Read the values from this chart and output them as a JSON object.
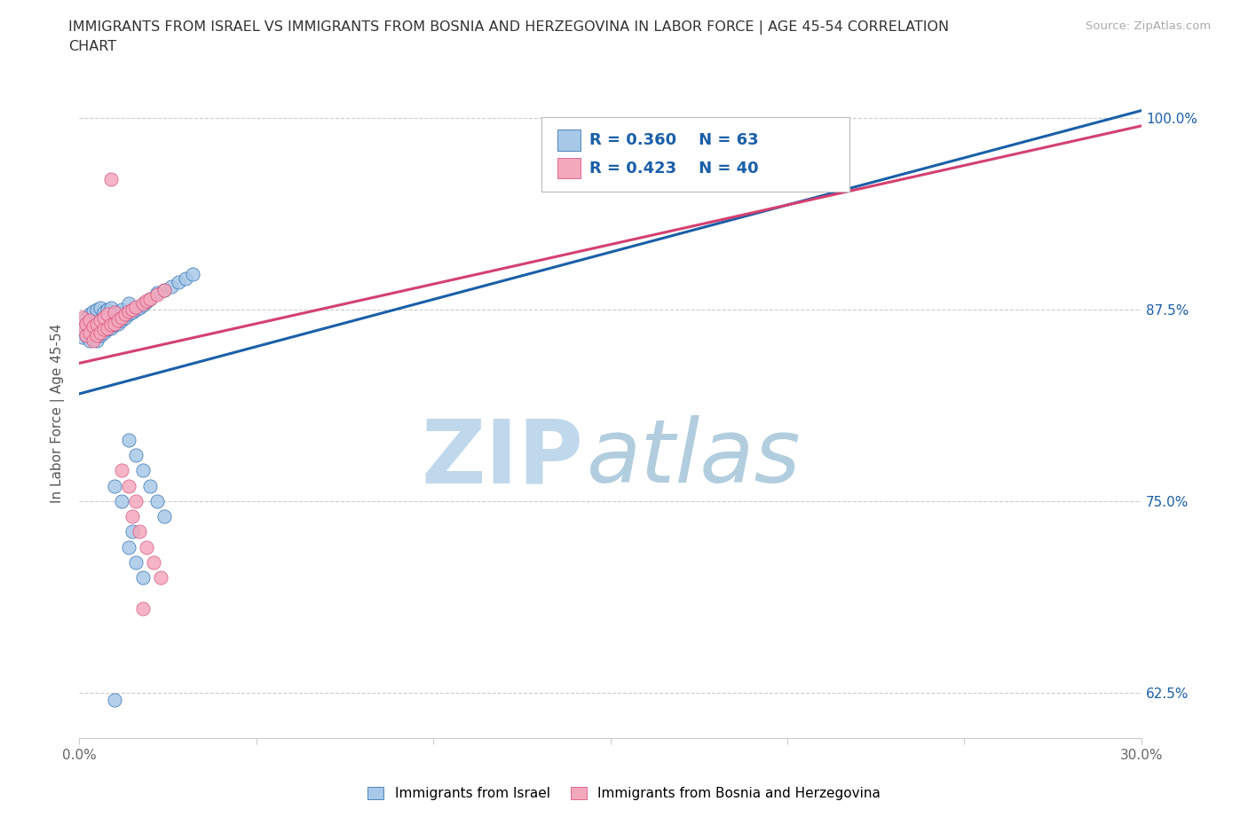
{
  "title_line1": "IMMIGRANTS FROM ISRAEL VS IMMIGRANTS FROM BOSNIA AND HERZEGOVINA IN LABOR FORCE | AGE 45-54 CORRELATION",
  "title_line2": "CHART",
  "source_text": "Source: ZipAtlas.com",
  "ylabel": "In Labor Force | Age 45-54",
  "xlim": [
    0.0,
    0.3
  ],
  "ylim": [
    0.595,
    1.02
  ],
  "xticks": [
    0.0,
    0.05,
    0.1,
    0.15,
    0.2,
    0.25,
    0.3
  ],
  "xticklabels": [
    "0.0%",
    "",
    "",
    "",
    "",
    "",
    "30.0%"
  ],
  "yticks": [
    0.625,
    0.75,
    0.875,
    1.0
  ],
  "yticklabels": [
    "62.5%",
    "75.0%",
    "87.5%",
    "100.0%"
  ],
  "israel_color": "#a8c8e8",
  "bosnia_color": "#f4a8bc",
  "israel_line_color": "#1a5fa8",
  "bosnia_line_color": "#d44070",
  "israel_R": 0.36,
  "israel_N": 63,
  "bosnia_R": 0.423,
  "bosnia_N": 40,
  "legend_R_color": "#1a5fa8",
  "watermark_zip_color": "#c0d8ec",
  "watermark_atlas_color": "#90b8d0",
  "israel_scatter_x": [
    0.001,
    0.001,
    0.002,
    0.002,
    0.002,
    0.003,
    0.003,
    0.003,
    0.004,
    0.004,
    0.004,
    0.004,
    0.005,
    0.005,
    0.005,
    0.005,
    0.006,
    0.006,
    0.006,
    0.006,
    0.007,
    0.007,
    0.007,
    0.008,
    0.008,
    0.008,
    0.009,
    0.009,
    0.009,
    0.01,
    0.01,
    0.011,
    0.011,
    0.012,
    0.012,
    0.013,
    0.014,
    0.014,
    0.015,
    0.016,
    0.017,
    0.018,
    0.019,
    0.02,
    0.022,
    0.024,
    0.026,
    0.028,
    0.03,
    0.032,
    0.014,
    0.016,
    0.018,
    0.02,
    0.022,
    0.024,
    0.014,
    0.016,
    0.018,
    0.01,
    0.012,
    0.015,
    0.01
  ],
  "israel_scatter_y": [
    0.857,
    0.862,
    0.858,
    0.865,
    0.87,
    0.855,
    0.863,
    0.872,
    0.856,
    0.86,
    0.867,
    0.874,
    0.855,
    0.862,
    0.868,
    0.875,
    0.858,
    0.863,
    0.868,
    0.876,
    0.86,
    0.866,
    0.873,
    0.862,
    0.868,
    0.875,
    0.863,
    0.869,
    0.876,
    0.865,
    0.872,
    0.866,
    0.873,
    0.868,
    0.875,
    0.87,
    0.872,
    0.879,
    0.873,
    0.875,
    0.876,
    0.878,
    0.88,
    0.882,
    0.886,
    0.888,
    0.89,
    0.893,
    0.895,
    0.898,
    0.79,
    0.78,
    0.77,
    0.76,
    0.75,
    0.74,
    0.72,
    0.71,
    0.7,
    0.76,
    0.75,
    0.73,
    0.62
  ],
  "bosnia_scatter_x": [
    0.001,
    0.001,
    0.002,
    0.002,
    0.003,
    0.003,
    0.004,
    0.004,
    0.005,
    0.005,
    0.006,
    0.006,
    0.007,
    0.007,
    0.008,
    0.008,
    0.009,
    0.01,
    0.01,
    0.011,
    0.012,
    0.013,
    0.014,
    0.015,
    0.016,
    0.018,
    0.019,
    0.02,
    0.022,
    0.024,
    0.015,
    0.017,
    0.019,
    0.021,
    0.023,
    0.012,
    0.014,
    0.016,
    0.018,
    0.009
  ],
  "bosnia_scatter_y": [
    0.862,
    0.87,
    0.858,
    0.866,
    0.86,
    0.868,
    0.855,
    0.864,
    0.858,
    0.866,
    0.86,
    0.868,
    0.862,
    0.87,
    0.863,
    0.872,
    0.865,
    0.866,
    0.873,
    0.868,
    0.87,
    0.872,
    0.874,
    0.875,
    0.877,
    0.879,
    0.881,
    0.882,
    0.885,
    0.888,
    0.74,
    0.73,
    0.72,
    0.71,
    0.7,
    0.77,
    0.76,
    0.75,
    0.68,
    0.96
  ],
  "israel_trendline_x": [
    0.0,
    0.3
  ],
  "israel_trendline_y": [
    0.82,
    1.005
  ],
  "bosnia_trendline_x": [
    0.0,
    0.3
  ],
  "bosnia_trendline_y": [
    0.84,
    0.995
  ]
}
